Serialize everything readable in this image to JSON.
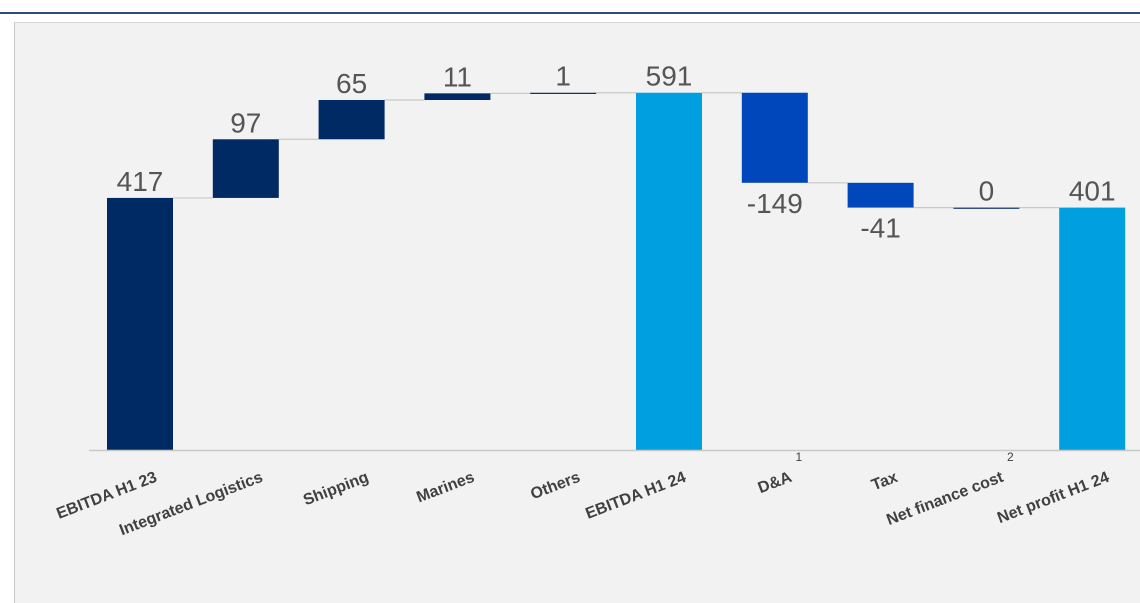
{
  "chart_data": {
    "type": "bar",
    "subtype": "waterfall",
    "categories": [
      "EBITDA H1 23",
      "Integrated Logistics",
      "Shipping",
      "Marines",
      "Others",
      "EBITDA H1 24",
      "D&A",
      "Tax",
      "Net finance cost",
      "Net profit H1 24"
    ],
    "values": [
      417,
      97,
      65,
      11,
      1,
      591,
      -149,
      -41,
      0,
      401
    ],
    "value_labels": [
      "417",
      "97",
      "65",
      "11",
      "1",
      "591",
      "-149",
      "-41",
      "0",
      "401"
    ],
    "kinds": [
      "total",
      "delta",
      "delta",
      "delta",
      "delta",
      "total",
      "delta",
      "delta",
      "delta",
      "total"
    ],
    "footnotes": [
      "",
      "",
      "",
      "",
      "",
      "",
      "1",
      "",
      "2",
      ""
    ],
    "title": "",
    "xlabel": "",
    "ylabel": "",
    "ylim": [
      0,
      620
    ],
    "grid": false,
    "legend": "none",
    "colors": {
      "total_start": "#002a63",
      "increase": "#002a63",
      "total": "#009fe0",
      "decrease": "#0047bb",
      "connector": "#c8c8c8",
      "axis": "#c8c8c8",
      "panel_bg": "#f2f2f2"
    }
  }
}
